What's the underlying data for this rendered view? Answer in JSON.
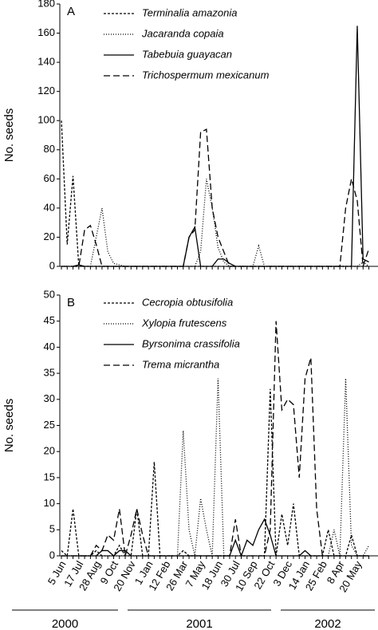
{
  "chart_data": [
    {
      "type": "line",
      "panel_label": "A",
      "y_label": "No. seeds",
      "ylim": [
        0,
        180
      ],
      "yticks": [
        0,
        20,
        40,
        60,
        80,
        100,
        120,
        140,
        160,
        180
      ],
      "series": [
        {
          "name": "Terminalia amazonia",
          "color": "#000000",
          "dash": "short",
          "values": [
            100,
            15,
            62,
            0,
            0,
            0,
            0,
            0,
            0,
            0,
            0,
            0,
            0,
            0,
            0,
            0,
            0,
            0,
            0,
            0,
            0,
            0,
            0,
            0,
            0,
            0,
            0,
            0,
            0,
            0,
            0,
            0,
            0,
            0,
            0,
            0,
            0,
            0,
            0,
            0,
            0,
            0,
            0,
            0,
            0,
            0,
            0,
            0,
            0,
            0,
            0,
            0,
            0,
            0
          ]
        },
        {
          "name": "Jacaranda copaia",
          "color": "#000000",
          "dash": "dotted",
          "values": [
            0,
            0,
            0,
            0,
            0,
            0,
            20,
            40,
            10,
            2,
            1,
            0,
            0,
            0,
            0,
            0,
            0,
            0,
            0,
            0,
            0,
            0,
            0,
            0,
            10,
            60,
            40,
            13,
            3,
            0,
            0,
            0,
            0,
            0,
            14,
            0,
            0,
            0,
            0,
            0,
            0,
            0,
            0,
            0,
            0,
            0,
            0,
            0,
            0,
            0,
            0,
            0,
            3,
            0
          ]
        },
        {
          "name": "Tabebuia guayacan",
          "color": "#000000",
          "dash": "solid",
          "values": [
            0,
            0,
            0,
            1,
            0,
            0,
            0,
            0,
            0,
            0,
            0,
            0,
            0,
            0,
            0,
            0,
            0,
            0,
            0,
            0,
            0,
            0,
            20,
            27,
            0,
            0,
            0,
            5,
            5,
            2,
            0,
            0,
            0,
            0,
            0,
            0,
            0,
            0,
            0,
            0,
            0,
            0,
            0,
            0,
            0,
            0,
            0,
            0,
            0,
            0,
            0,
            165,
            5,
            3
          ]
        },
        {
          "name": "Trichospermum mexicanum",
          "color": "#000000",
          "dash": "long",
          "values": [
            0,
            0,
            0,
            0,
            25,
            28,
            15,
            0,
            0,
            0,
            0,
            0,
            0,
            0,
            0,
            0,
            0,
            0,
            0,
            0,
            0,
            0,
            20,
            25,
            92,
            94,
            40,
            20,
            10,
            0,
            0,
            0,
            0,
            0,
            0,
            0,
            0,
            0,
            0,
            0,
            0,
            0,
            0,
            0,
            0,
            0,
            0,
            0,
            0,
            40,
            60,
            45,
            0,
            12
          ]
        }
      ]
    },
    {
      "type": "line",
      "panel_label": "B",
      "y_label": "No. seeds",
      "categories": [
        "5 Jun",
        null,
        null,
        "17 Jul",
        null,
        null,
        "28 Aug",
        null,
        null,
        "9 Oct",
        null,
        null,
        "20 Nov",
        null,
        null,
        "1 Jan",
        null,
        null,
        "12 Feb",
        null,
        null,
        "26 Mar",
        null,
        null,
        "7 May",
        null,
        null,
        "18 Jun",
        null,
        null,
        "30 Jul",
        null,
        null,
        "10 Sep",
        null,
        null,
        "22 Oct",
        null,
        null,
        "3 Dec",
        null,
        null,
        "14 Jan",
        null,
        null,
        "25 Feb",
        null,
        null,
        "8 Apr",
        null,
        null,
        "20 May",
        null,
        null
      ],
      "year_labels": [
        "2000",
        "2001",
        "2002"
      ],
      "ylim": [
        0,
        50
      ],
      "yticks": [
        0,
        5,
        10,
        15,
        20,
        25,
        30,
        35,
        40,
        45,
        50
      ],
      "series": [
        {
          "name": "Cecropia obtusifolia",
          "color": "#000000",
          "dash": "short",
          "values": [
            1,
            0,
            9,
            0,
            0,
            0,
            1,
            0,
            0,
            0,
            2,
            0,
            0,
            9,
            0,
            0,
            18,
            0,
            0,
            0,
            0,
            1,
            0,
            0,
            0,
            0,
            0,
            0,
            0,
            0,
            0,
            0,
            0,
            0,
            0,
            0,
            32,
            0,
            8,
            2,
            10,
            0,
            0,
            0,
            0,
            0,
            5,
            0,
            0,
            0,
            4,
            0,
            0,
            0
          ]
        },
        {
          "name": "Xylopia frutescens",
          "color": "#000000",
          "dash": "dotted",
          "values": [
            0,
            0,
            0,
            0,
            0,
            0,
            0,
            0,
            0,
            0,
            0,
            0,
            0,
            0,
            0,
            0,
            0,
            0,
            0,
            0,
            0,
            24,
            5,
            0,
            11,
            5,
            0,
            34,
            0,
            0,
            0,
            0,
            0,
            0,
            0,
            0,
            0,
            0,
            0,
            0,
            0,
            0,
            0,
            0,
            0,
            0,
            0,
            5,
            0,
            34,
            2,
            0,
            0,
            2
          ]
        },
        {
          "name": "Byrsonima crassifolia",
          "color": "#000000",
          "dash": "solid",
          "values": [
            0,
            0,
            0,
            0,
            0,
            0,
            0,
            1,
            1,
            0,
            1,
            1,
            0,
            0,
            0,
            0,
            0,
            0,
            0,
            0,
            0,
            0,
            0,
            0,
            0,
            0,
            0,
            0,
            0,
            0,
            3,
            0,
            3,
            2,
            5,
            7,
            4,
            0,
            0,
            0,
            0,
            0,
            1,
            0,
            0,
            0,
            0,
            0,
            0,
            0,
            0,
            0,
            0,
            0
          ]
        },
        {
          "name": "Trema micrantha",
          "color": "#000000",
          "dash": "long",
          "values": [
            0,
            0,
            0,
            0,
            0,
            0,
            2,
            1,
            4,
            3,
            9,
            0,
            4,
            9,
            4,
            0,
            0,
            0,
            0,
            0,
            0,
            0,
            0,
            0,
            0,
            0,
            0,
            0,
            0,
            0,
            7,
            0,
            0,
            0,
            0,
            0,
            5,
            45,
            28,
            30,
            29,
            15,
            34,
            38,
            9,
            0,
            0,
            0,
            0,
            0,
            0,
            0,
            0,
            0
          ]
        }
      ]
    }
  ]
}
